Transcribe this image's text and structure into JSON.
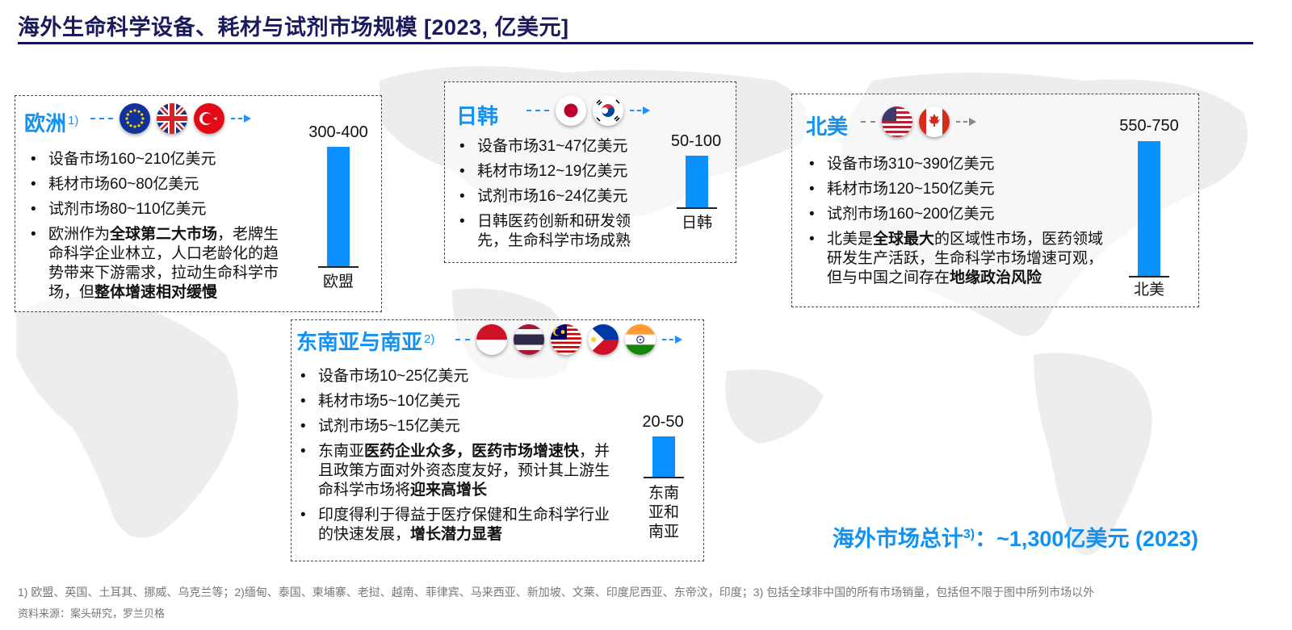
{
  "title": "海外生命科学设备、耗材与试剂市场规模 [2023, 亿美元]",
  "accent_color": "#1291f0",
  "bar_color": "#0a90ff",
  "regions": {
    "europe": {
      "name": "欧洲",
      "note": "1)",
      "flags": [
        "eu-flag-icon",
        "uk-flag-icon",
        "turkey-flag-icon"
      ],
      "bullets": [
        "设备市场160~210亿美元",
        "耗材市场60~80亿美元",
        "试剂市场80~110亿美元"
      ],
      "desc": [
        {
          "t": "欧洲作为",
          "b": false
        },
        {
          "t": "全球第二大市场",
          "b": true
        },
        {
          "t": "，老牌生命科学企业林立，人口老龄化的趋势带来下游需求，拉动生命科学市场，但",
          "b": false
        },
        {
          "t": "整体增速相对缓慢",
          "b": true
        }
      ],
      "bar_value": "300-400",
      "bar_label": "欧盟"
    },
    "japan_korea": {
      "name": "日韩",
      "flags": [
        "japan-flag-icon",
        "korea-flag-icon"
      ],
      "bullets": [
        "设备市场31~47亿美元",
        "耗材市场12~19亿美元",
        "试剂市场16~24亿美元"
      ],
      "desc": [
        {
          "t": "日韩医药创新和研发领先，生命科学市场成熟",
          "b": false
        }
      ],
      "bar_value": "50-100",
      "bar_label": "日韩"
    },
    "north_america": {
      "name": "北美",
      "flags": [
        "usa-flag-icon",
        "canada-flag-icon"
      ],
      "bullets": [
        "设备市场310~390亿美元",
        "耗材市场120~150亿美元",
        "试剂市场160~200亿美元"
      ],
      "desc": [
        {
          "t": "北美是",
          "b": false
        },
        {
          "t": "全球最大",
          "b": true
        },
        {
          "t": "的区域性市场，医药领域研发生产活跃，生命科学市场增速可观，但与中国之间存在",
          "b": false
        },
        {
          "t": "地缘政治风险",
          "b": true
        }
      ],
      "bar_value": "550-750",
      "bar_label": "北美"
    },
    "sea_sa": {
      "name": "东南亚与南亚",
      "note": "2)",
      "flags": [
        "indonesia-flag-icon",
        "thailand-flag-icon",
        "malaysia-flag-icon",
        "philippines-flag-icon",
        "india-flag-icon"
      ],
      "bullets": [
        "设备市场10~25亿美元",
        "耗材市场5~10亿美元",
        "试剂市场5~15亿美元"
      ],
      "desc": [
        {
          "t": "东南亚",
          "b": false
        },
        {
          "t": "医药企业众多，医药市场增速快",
          "b": true
        },
        {
          "t": "，并且政策方面对外资态度友好，预计其上游生命科学市场将",
          "b": false
        },
        {
          "t": "迎来高增长",
          "b": true
        }
      ],
      "desc2": [
        {
          "t": "印度得利于得益于医疗保健和生命科学行业的快速发展，",
          "b": false
        },
        {
          "t": "增长潜力显著",
          "b": true
        }
      ],
      "bar_value": "20-50",
      "bar_label_lines": [
        "东南",
        "亚和",
        "南亚"
      ]
    }
  },
  "chart_data": {
    "type": "bar",
    "categories": [
      "欧盟",
      "日韩",
      "北美",
      "东南亚和南亚"
    ],
    "value_labels": [
      "300-400",
      "50-100",
      "550-750",
      "20-50"
    ],
    "ranges": [
      [
        300,
        400
      ],
      [
        50,
        100
      ],
      [
        550,
        750
      ],
      [
        20,
        50
      ]
    ],
    "ylabel": "",
    "title": "海外生命科学设备、耗材与试剂市场规模 [2023, 亿美元]"
  },
  "total": {
    "label": "海外市场总计",
    "note": "3)",
    "value": "：~1,300亿美元 (2023)"
  },
  "footnote": "1) 欧盟、英国、土耳其、挪威、乌克兰等；2)缅甸、泰国、柬埔寨、老挝、越南、菲律宾、马来西亚、新加坡、文莱、印度尼西亚、东帝汶，印度；3) 包括全球非中国的所有市场销量，包括但不限于图中所列市场以外",
  "source": "资料来源：案头研究，罗兰贝格"
}
